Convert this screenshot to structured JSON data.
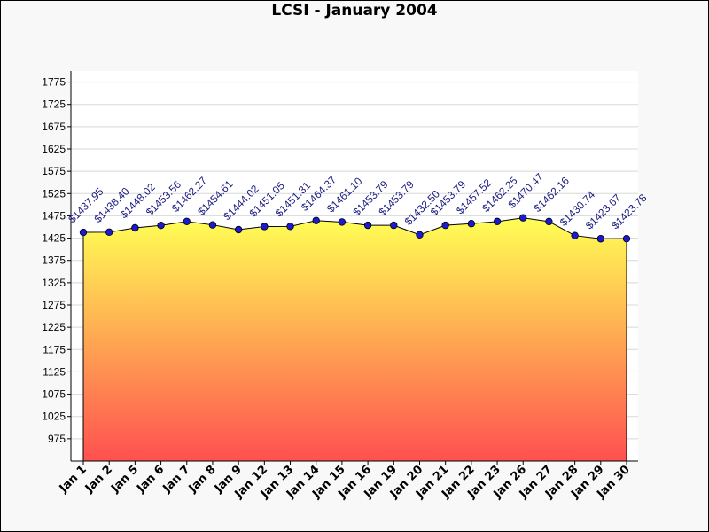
{
  "chart_data": {
    "type": "area",
    "title": "LCSI - January 2004",
    "xlabel": "",
    "ylabel": "",
    "ylim": [
      925,
      1800
    ],
    "yticks": [
      975,
      1025,
      1075,
      1125,
      1175,
      1225,
      1275,
      1325,
      1375,
      1425,
      1475,
      1525,
      1575,
      1625,
      1675,
      1725,
      1775
    ],
    "grid": true,
    "legend": "none",
    "fill_gradient": [
      "#ffff55",
      "#ff5050"
    ],
    "line_color": "#000000",
    "marker_color": "#1a1ad0",
    "label_color": "#1a1a80",
    "categories": [
      "Jan 1",
      "Jan 2",
      "Jan 5",
      "Jan 6",
      "Jan 7",
      "Jan 8",
      "Jan 9",
      "Jan 12",
      "Jan 13",
      "Jan 14",
      "Jan 15",
      "Jan 16",
      "Jan 19",
      "Jan 20",
      "Jan 21",
      "Jan 22",
      "Jan 23",
      "Jan 26",
      "Jan 27",
      "Jan 28",
      "Jan 29",
      "Jan 30"
    ],
    "values": [
      1437.95,
      1438.4,
      1448.02,
      1453.56,
      1462.27,
      1454.61,
      1444.02,
      1451.05,
      1451.31,
      1464.37,
      1461.1,
      1453.79,
      1453.79,
      1432.5,
      1453.79,
      1457.52,
      1462.25,
      1470.47,
      1462.16,
      1430.74,
      1423.67,
      1423.78
    ],
    "data_labels": [
      "$1437.95",
      "$1438.40",
      "$1448.02",
      "$1453.56",
      "$1462.27",
      "$1454.61",
      "$1444.02",
      "$1451.05",
      "$1451.31",
      "$1464.37",
      "$1461.10",
      "$1453.79",
      "$1453.79",
      "$1432.50",
      "$1453.79",
      "$1457.52",
      "$1462.25",
      "$1470.47",
      "$1462.16",
      "$1430.74",
      "$1423.67",
      "$1423.78"
    ]
  }
}
